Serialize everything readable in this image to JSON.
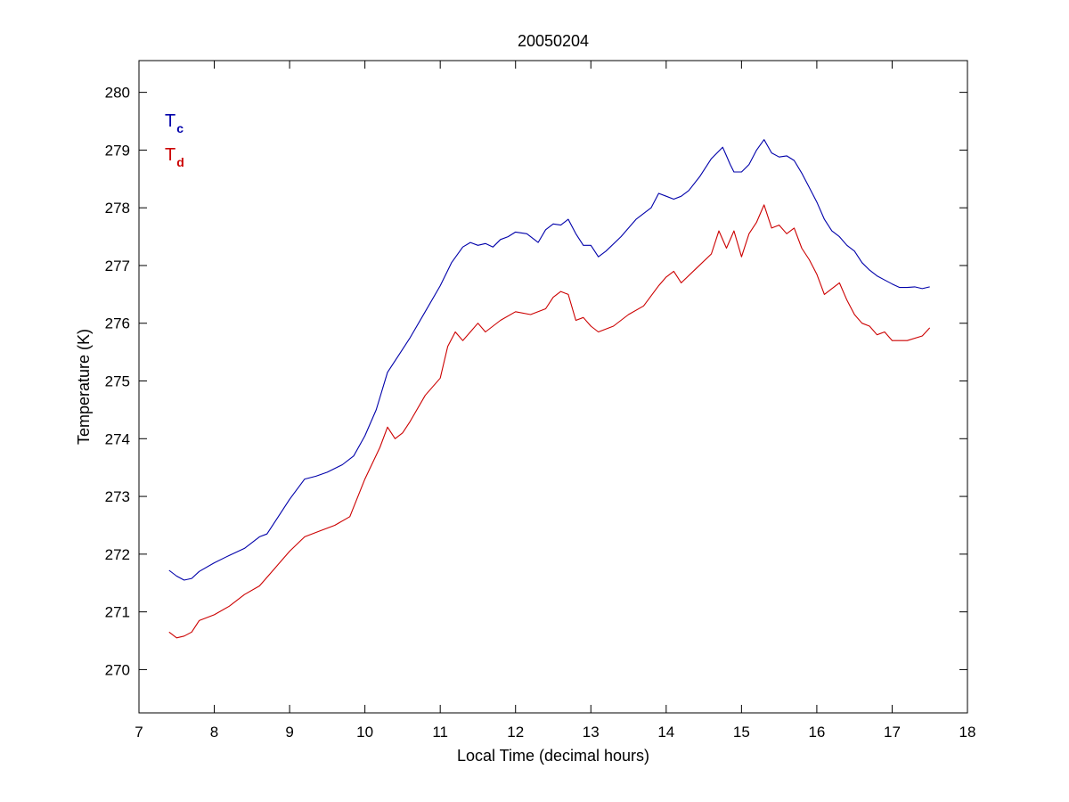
{
  "chart_data": {
    "type": "line",
    "title": "20050204",
    "xlabel": "Local Time (decimal hours)",
    "ylabel": "Temperature (K)",
    "xlim": [
      7,
      18
    ],
    "ylim": [
      269.25,
      280.55
    ],
    "xticks": [
      7,
      8,
      9,
      10,
      11,
      12,
      13,
      14,
      15,
      16,
      17,
      18
    ],
    "yticks": [
      270,
      271,
      272,
      273,
      274,
      275,
      276,
      277,
      278,
      279,
      280
    ],
    "grid": false,
    "legend": {
      "placement": "top-left",
      "style": "text-labels"
    },
    "series": [
      {
        "name": "T",
        "subscript": "c",
        "color": "#0000aa",
        "x": [
          7.4,
          7.5,
          7.6,
          7.7,
          7.8,
          8.0,
          8.2,
          8.4,
          8.6,
          8.7,
          8.85,
          9.0,
          9.2,
          9.35,
          9.5,
          9.7,
          9.85,
          10.0,
          10.15,
          10.3,
          10.45,
          10.6,
          10.8,
          11.0,
          11.15,
          11.3,
          11.4,
          11.5,
          11.6,
          11.7,
          11.8,
          11.9,
          12.0,
          12.15,
          12.3,
          12.4,
          12.5,
          12.6,
          12.7,
          12.8,
          12.9,
          13.0,
          13.1,
          13.2,
          13.4,
          13.6,
          13.8,
          13.9,
          14.0,
          14.1,
          14.2,
          14.3,
          14.45,
          14.6,
          14.75,
          14.8,
          14.85,
          14.9,
          15.0,
          15.1,
          15.2,
          15.3,
          15.4,
          15.5,
          15.6,
          15.7,
          15.8,
          15.9,
          16.0,
          16.1,
          16.2,
          16.3,
          16.4,
          16.5,
          16.6,
          16.7,
          16.8,
          16.9,
          17.0,
          17.1,
          17.2,
          17.3,
          17.4,
          17.5
        ],
        "y": [
          271.72,
          271.62,
          271.55,
          271.58,
          271.7,
          271.85,
          271.98,
          272.1,
          272.3,
          272.35,
          272.65,
          272.95,
          273.3,
          273.35,
          273.42,
          273.55,
          273.7,
          274.05,
          274.5,
          275.15,
          275.45,
          275.75,
          276.2,
          276.65,
          277.05,
          277.32,
          277.4,
          277.35,
          277.38,
          277.32,
          277.45,
          277.5,
          277.58,
          277.55,
          277.4,
          277.62,
          277.72,
          277.7,
          277.8,
          277.55,
          277.35,
          277.35,
          277.15,
          277.25,
          277.5,
          277.8,
          278.0,
          278.25,
          278.2,
          278.15,
          278.2,
          278.3,
          278.55,
          278.85,
          279.05,
          278.9,
          278.75,
          278.62,
          278.62,
          278.75,
          279.0,
          279.18,
          278.95,
          278.88,
          278.9,
          278.82,
          278.6,
          278.35,
          278.1,
          277.8,
          277.6,
          277.5,
          277.35,
          277.25,
          277.05,
          276.92,
          276.82,
          276.75,
          276.68,
          276.62,
          276.62,
          276.63,
          276.6,
          276.63
        ]
      },
      {
        "name": "T",
        "subscript": "d",
        "color": "#cc0000",
        "x": [
          7.4,
          7.5,
          7.6,
          7.7,
          7.8,
          8.0,
          8.2,
          8.4,
          8.6,
          8.8,
          9.0,
          9.2,
          9.4,
          9.6,
          9.8,
          10.0,
          10.2,
          10.3,
          10.4,
          10.5,
          10.6,
          10.8,
          11.0,
          11.1,
          11.2,
          11.3,
          11.4,
          11.5,
          11.6,
          11.8,
          12.0,
          12.2,
          12.4,
          12.5,
          12.6,
          12.7,
          12.8,
          12.9,
          13.0,
          13.1,
          13.3,
          13.5,
          13.7,
          13.9,
          14.0,
          14.1,
          14.2,
          14.4,
          14.6,
          14.7,
          14.8,
          14.9,
          15.0,
          15.1,
          15.2,
          15.3,
          15.4,
          15.5,
          15.6,
          15.7,
          15.8,
          15.9,
          16.0,
          16.1,
          16.2,
          16.3,
          16.4,
          16.5,
          16.6,
          16.7,
          16.8,
          16.9,
          17.0,
          17.2,
          17.4,
          17.5
        ],
        "y": [
          270.65,
          270.55,
          270.58,
          270.65,
          270.85,
          270.95,
          271.1,
          271.3,
          271.45,
          271.75,
          272.05,
          272.3,
          272.4,
          272.5,
          272.65,
          273.3,
          273.85,
          274.2,
          274.0,
          274.1,
          274.3,
          274.75,
          275.05,
          275.6,
          275.85,
          275.7,
          275.85,
          276.0,
          275.85,
          276.05,
          276.2,
          276.15,
          276.25,
          276.45,
          276.55,
          276.5,
          276.05,
          276.1,
          275.95,
          275.85,
          275.95,
          276.15,
          276.3,
          276.65,
          276.8,
          276.9,
          276.7,
          276.95,
          277.2,
          277.6,
          277.3,
          277.6,
          277.15,
          277.55,
          277.75,
          278.05,
          277.65,
          277.7,
          277.55,
          277.65,
          277.3,
          277.1,
          276.85,
          276.5,
          276.6,
          276.7,
          276.4,
          276.15,
          276.0,
          275.95,
          275.8,
          275.85,
          275.7,
          275.7,
          275.78,
          275.92
        ]
      }
    ]
  }
}
